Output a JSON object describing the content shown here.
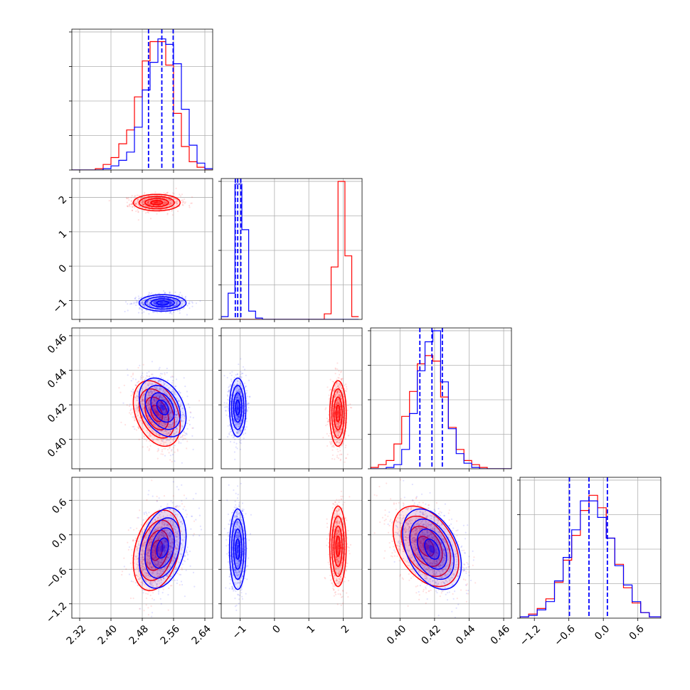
{
  "chart_data": {
    "type": "corner",
    "grid": true,
    "colors": {
      "series_a": "#ff0000",
      "series_b": "#0000ff"
    },
    "series": [
      {
        "color": "#ff0000"
      },
      {
        "color": "#0000ff"
      }
    ],
    "params": [
      {
        "range": [
          2.3,
          2.66
        ],
        "ticks": [
          2.32,
          2.4,
          2.48,
          2.56,
          2.64
        ],
        "tick_labels": [
          "2.32",
          "2.40",
          "2.48",
          "2.56",
          "2.64"
        ]
      },
      {
        "range": [
          -1.55,
          2.55
        ],
        "ticks": [
          -1,
          0,
          1,
          2
        ],
        "tick_labels": [
          "−1",
          "0",
          "1",
          "2"
        ]
      },
      {
        "range": [
          0.383,
          0.4645
        ],
        "ticks": [
          0.4,
          0.42,
          0.44,
          0.46
        ],
        "tick_labels": [
          "0.40",
          "0.42",
          "0.44",
          "0.46"
        ]
      },
      {
        "range": [
          -1.45,
          1.0
        ],
        "ticks": [
          -1.2,
          -0.6,
          0.0,
          0.6
        ],
        "tick_labels": [
          "−1.2",
          "−0.6",
          "0.0",
          "0.6"
        ]
      }
    ],
    "quantiles": [
      [
        2.496,
        2.53,
        2.559
      ],
      [
        -1.14,
        -1.07,
        -0.98
      ],
      [
        0.4115,
        0.4185,
        0.4245
      ],
      [
        -0.59,
        -0.25,
        0.07
      ]
    ],
    "marginals": [
      {
        "bin_edges": [
          2.3,
          2.32,
          2.34,
          2.36,
          2.38,
          2.4,
          2.42,
          2.44,
          2.46,
          2.48,
          2.5,
          2.52,
          2.54,
          2.56,
          2.58,
          2.6,
          2.62,
          2.64,
          2.66
        ],
        "series_a": [
          0,
          0,
          0,
          0.01,
          0.04,
          0.09,
          0.19,
          0.29,
          0.53,
          0.79,
          0.93,
          0.93,
          0.76,
          0.41,
          0.17,
          0.06,
          0.02,
          0
        ],
        "series_b": [
          0,
          0,
          0,
          0,
          0.01,
          0.03,
          0.07,
          0.13,
          0.31,
          0.58,
          0.78,
          0.95,
          0.91,
          0.77,
          0.44,
          0.18,
          0.05,
          0.01
        ]
      },
      {
        "bin_edges": [
          -1.55,
          -1.35,
          -1.15,
          -0.95,
          -0.75,
          -0.55,
          -0.35,
          -0.15,
          0.05,
          0.25,
          0.45,
          0.65,
          0.85,
          1.05,
          1.25,
          1.45,
          1.65,
          1.85,
          2.05,
          2.25,
          2.45
        ],
        "series_a": [
          0,
          0,
          0,
          0,
          0,
          0,
          0,
          0,
          0,
          0,
          0,
          0,
          0,
          0,
          0,
          0.04,
          0.38,
          1.0,
          0.46,
          0.02
        ],
        "series_b": [
          0.02,
          0.19,
          0.98,
          0.65,
          0.06,
          0.01,
          0,
          0,
          0,
          0,
          0,
          0,
          0,
          0,
          0,
          0,
          0,
          0,
          0,
          0
        ]
      },
      {
        "bin_edges": [
          0.383,
          0.3875,
          0.392,
          0.3965,
          0.401,
          0.4055,
          0.41,
          0.4145,
          0.419,
          0.4235,
          0.428,
          0.4325,
          0.437,
          0.4415,
          0.446,
          0.4505,
          0.455,
          0.4595,
          0.4645
        ],
        "series_a": [
          0.01,
          0.03,
          0.06,
          0.18,
          0.38,
          0.56,
          0.76,
          0.82,
          0.78,
          0.52,
          0.3,
          0.14,
          0.06,
          0.03,
          0.01,
          0,
          0,
          0
        ],
        "series_b": [
          0,
          0,
          0.01,
          0.03,
          0.14,
          0.4,
          0.71,
          0.92,
          1.0,
          0.63,
          0.29,
          0.11,
          0.04,
          0.01,
          0,
          0,
          0,
          0
        ]
      },
      {
        "bin_edges": [
          -1.45,
          -1.3,
          -1.15,
          -1.0,
          -0.85,
          -0.7,
          -0.55,
          -0.4,
          -0.25,
          -0.1,
          0.05,
          0.2,
          0.35,
          0.5,
          0.65,
          0.8,
          1.0
        ],
        "series_a": [
          0.01,
          0.03,
          0.07,
          0.14,
          0.26,
          0.42,
          0.6,
          0.78,
          0.89,
          0.8,
          0.58,
          0.39,
          0.22,
          0.11,
          0.04,
          0.01
        ],
        "series_b": [
          0.01,
          0.02,
          0.06,
          0.12,
          0.27,
          0.44,
          0.64,
          0.85,
          0.85,
          0.73,
          0.58,
          0.38,
          0.24,
          0.12,
          0.04,
          0.01
        ]
      }
    ],
    "pairs": [
      {
        "x": 0,
        "y": 1,
        "series_a": {
          "mean": [
            2.517,
            1.85
          ],
          "sd": [
            0.03,
            0.12
          ],
          "rho": 0.0
        },
        "series_b": {
          "mean": [
            2.532,
            -1.07
          ],
          "sd": [
            0.03,
            0.12
          ],
          "rho": 0.0
        }
      },
      {
        "x": 0,
        "y": 2,
        "series_a": {
          "mean": [
            2.517,
            0.415
          ],
          "sd": [
            0.03,
            0.0095
          ],
          "rho": -0.35
        },
        "series_b": {
          "mean": [
            2.532,
            0.4185
          ],
          "sd": [
            0.03,
            0.0085
          ],
          "rho": -0.35
        }
      },
      {
        "x": 1,
        "y": 2,
        "series_a": {
          "mean": [
            1.85,
            0.415
          ],
          "sd": [
            0.12,
            0.0095
          ],
          "rho": 0.0
        },
        "series_b": {
          "mean": [
            -1.07,
            0.4185
          ],
          "sd": [
            0.12,
            0.0085
          ],
          "rho": 0.0
        }
      },
      {
        "x": 0,
        "y": 3,
        "series_a": {
          "mean": [
            2.517,
            -0.27
          ],
          "sd": [
            0.03,
            0.35
          ],
          "rho": 0.3
        },
        "series_b": {
          "mean": [
            2.532,
            -0.23
          ],
          "sd": [
            0.03,
            0.35
          ],
          "rho": 0.3
        }
      },
      {
        "x": 1,
        "y": 3,
        "series_a": {
          "mean": [
            1.85,
            -0.2
          ],
          "sd": [
            0.12,
            0.35
          ],
          "rho": 0.0
        },
        "series_b": {
          "mean": [
            -1.07,
            -0.25
          ],
          "sd": [
            0.12,
            0.35
          ],
          "rho": 0.0
        }
      },
      {
        "x": 2,
        "y": 3,
        "series_a": {
          "mean": [
            0.415,
            -0.2
          ],
          "sd": [
            0.0095,
            0.35
          ],
          "rho": -0.4
        },
        "series_b": {
          "mean": [
            0.4185,
            -0.25
          ],
          "sd": [
            0.0085,
            0.35
          ],
          "rho": -0.4
        }
      }
    ]
  }
}
